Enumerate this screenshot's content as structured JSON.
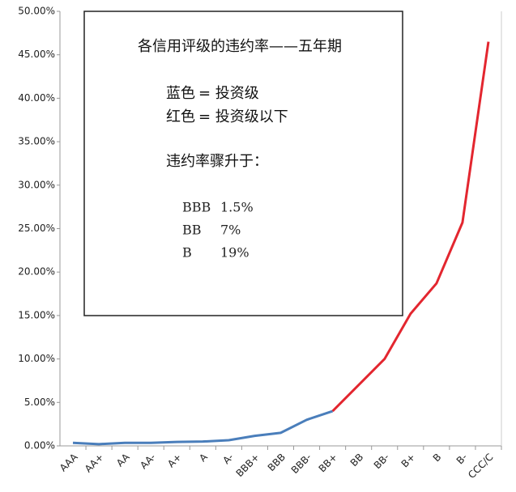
{
  "chart_data": {
    "type": "line",
    "categories": [
      "AAA",
      "AA+",
      "AA",
      "AA-",
      "A+",
      "A",
      "A-",
      "BBB+",
      "BBB",
      "BBB-",
      "BB+",
      "BB",
      "BB-",
      "B+",
      "B",
      "B-",
      "CCC/C"
    ],
    "series": [
      {
        "color": "#4a7ebb",
        "values": [
          0.35,
          0.2,
          0.35,
          0.35,
          0.45,
          0.5,
          0.65,
          1.15,
          1.5,
          3.0,
          4.0,
          null,
          null,
          null,
          null,
          null,
          null
        ]
      },
      {
        "color": "#e3262f",
        "values": [
          null,
          null,
          null,
          null,
          null,
          null,
          null,
          null,
          null,
          null,
          4.0,
          7.0,
          10.0,
          15.2,
          18.7,
          25.7,
          46.5
        ]
      }
    ],
    "ylim": [
      0,
      50
    ],
    "yticks": [
      {
        "value": 0,
        "label": "0.00%"
      },
      {
        "value": 5,
        "label": "5.00%"
      },
      {
        "value": 10,
        "label": "10.00%"
      },
      {
        "value": 15,
        "label": "15.00%"
      },
      {
        "value": 20,
        "label": "20.00%"
      },
      {
        "value": 25,
        "label": "25.00%"
      },
      {
        "value": 30,
        "label": "30.00%"
      },
      {
        "value": 35,
        "label": "35.00%"
      },
      {
        "value": 40,
        "label": "40.00%"
      },
      {
        "value": 45,
        "label": "45.00%"
      },
      {
        "value": 50,
        "label": "50.00%"
      }
    ],
    "grid": false,
    "annotation": {
      "title": "各信用评级的违约率——五年期",
      "key": [
        {
          "swatch": "蓝色",
          "text": "= 投资级",
          "color": "#2e8bc0"
        },
        {
          "swatch": "红色",
          "text": "= 投资级以下",
          "color": "#d0202e"
        }
      ],
      "note": "违约率骤升于：",
      "thresholds": [
        {
          "rating": "BBB",
          "rate": "1.5%"
        },
        {
          "rating": "BB",
          "rate": "7%"
        },
        {
          "rating": "B",
          "rate": "19%"
        }
      ]
    }
  }
}
